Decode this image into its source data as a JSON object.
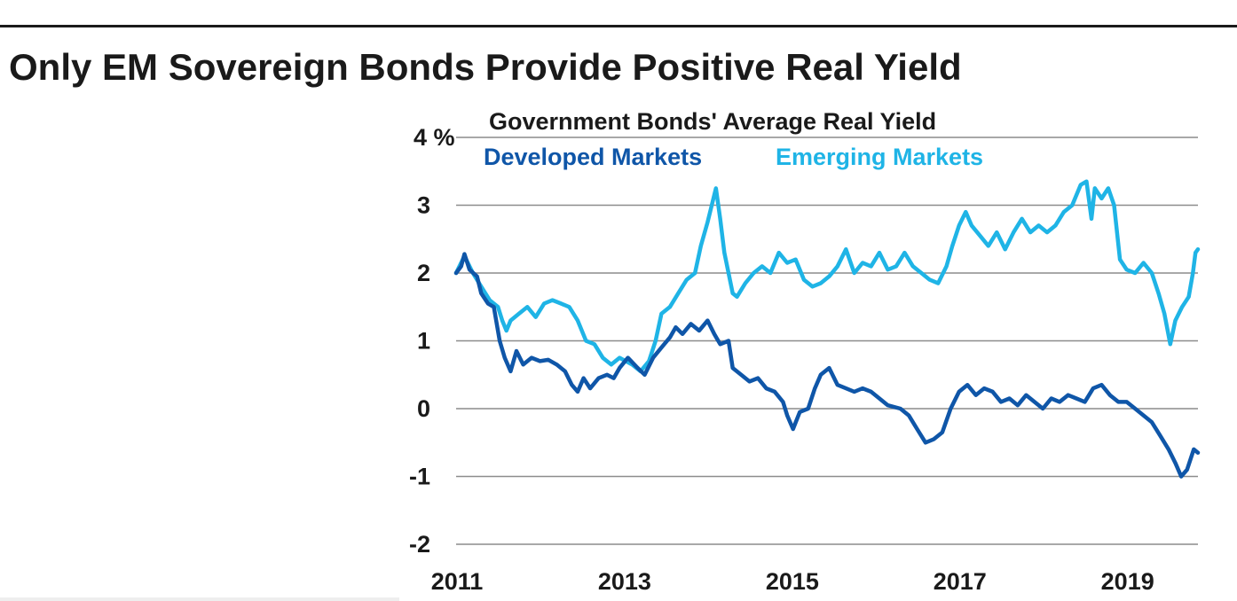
{
  "page": {
    "title": "Only EM Sovereign Bonds Provide Positive Real Yield"
  },
  "colors": {
    "developed": "#0f56a8",
    "emerging": "#1fb4e6",
    "grid": "#8c8c8c",
    "text": "#1a1a1a"
  },
  "chart_data": {
    "type": "line",
    "title": "Government Bonds' Average Real Yield",
    "ylabel": "%",
    "xlim": [
      2011,
      2019.85
    ],
    "ylim": [
      -2,
      4
    ],
    "x_ticks": [
      2011,
      2013,
      2015,
      2017,
      2019
    ],
    "x_tick_labels": [
      "2011",
      "2013",
      "2015",
      "2017",
      "2019"
    ],
    "y_ticks": [
      4,
      3,
      2,
      1,
      0,
      -1,
      -2
    ],
    "y_tick_labels": [
      "4 %",
      "3",
      "2",
      "1",
      "0",
      "-1",
      "-2"
    ],
    "grid": true,
    "legend_position": "top-left",
    "series": [
      {
        "name": "Developed Markets",
        "color": "#0f56a8",
        "points": [
          [
            2011.0,
            2.0
          ],
          [
            2011.06,
            2.1
          ],
          [
            2011.1,
            2.28
          ],
          [
            2011.16,
            2.05
          ],
          [
            2011.25,
            1.95
          ],
          [
            2011.3,
            1.7
          ],
          [
            2011.38,
            1.55
          ],
          [
            2011.45,
            1.5
          ],
          [
            2011.52,
            1.0
          ],
          [
            2011.58,
            0.75
          ],
          [
            2011.65,
            0.55
          ],
          [
            2011.72,
            0.85
          ],
          [
            2011.8,
            0.65
          ],
          [
            2011.9,
            0.75
          ],
          [
            2012.0,
            0.7
          ],
          [
            2012.1,
            0.72
          ],
          [
            2012.2,
            0.65
          ],
          [
            2012.3,
            0.55
          ],
          [
            2012.38,
            0.35
          ],
          [
            2012.45,
            0.25
          ],
          [
            2012.52,
            0.45
          ],
          [
            2012.6,
            0.3
          ],
          [
            2012.7,
            0.45
          ],
          [
            2012.8,
            0.5
          ],
          [
            2012.88,
            0.45
          ],
          [
            2012.95,
            0.6
          ],
          [
            2013.05,
            0.75
          ],
          [
            2013.15,
            0.62
          ],
          [
            2013.25,
            0.5
          ],
          [
            2013.35,
            0.75
          ],
          [
            2013.45,
            0.9
          ],
          [
            2013.55,
            1.05
          ],
          [
            2013.62,
            1.2
          ],
          [
            2013.7,
            1.1
          ],
          [
            2013.8,
            1.25
          ],
          [
            2013.9,
            1.15
          ],
          [
            2014.0,
            1.3
          ],
          [
            2014.08,
            1.1
          ],
          [
            2014.15,
            0.95
          ],
          [
            2014.25,
            1.0
          ],
          [
            2014.3,
            0.6
          ],
          [
            2014.4,
            0.5
          ],
          [
            2014.5,
            0.4
          ],
          [
            2014.6,
            0.45
          ],
          [
            2014.7,
            0.3
          ],
          [
            2014.8,
            0.25
          ],
          [
            2014.9,
            0.1
          ],
          [
            2014.95,
            -0.1
          ],
          [
            2015.02,
            -0.3
          ],
          [
            2015.1,
            -0.05
          ],
          [
            2015.2,
            0.0
          ],
          [
            2015.28,
            0.3
          ],
          [
            2015.35,
            0.5
          ],
          [
            2015.45,
            0.6
          ],
          [
            2015.55,
            0.35
          ],
          [
            2015.65,
            0.3
          ],
          [
            2015.75,
            0.25
          ],
          [
            2015.85,
            0.3
          ],
          [
            2015.95,
            0.25
          ],
          [
            2016.05,
            0.15
          ],
          [
            2016.15,
            0.05
          ],
          [
            2016.3,
            0.0
          ],
          [
            2016.4,
            -0.1
          ],
          [
            2016.5,
            -0.3
          ],
          [
            2016.6,
            -0.5
          ],
          [
            2016.7,
            -0.45
          ],
          [
            2016.8,
            -0.35
          ],
          [
            2016.9,
            0.0
          ],
          [
            2017.0,
            0.25
          ],
          [
            2017.1,
            0.35
          ],
          [
            2017.2,
            0.2
          ],
          [
            2017.3,
            0.3
          ],
          [
            2017.4,
            0.25
          ],
          [
            2017.5,
            0.1
          ],
          [
            2017.6,
            0.15
          ],
          [
            2017.7,
            0.05
          ],
          [
            2017.8,
            0.2
          ],
          [
            2017.9,
            0.1
          ],
          [
            2018.0,
            0.0
          ],
          [
            2018.1,
            0.15
          ],
          [
            2018.2,
            0.1
          ],
          [
            2018.3,
            0.2
          ],
          [
            2018.4,
            0.15
          ],
          [
            2018.5,
            0.1
          ],
          [
            2018.6,
            0.3
          ],
          [
            2018.7,
            0.35
          ],
          [
            2018.8,
            0.2
          ],
          [
            2018.9,
            0.1
          ],
          [
            2019.0,
            0.1
          ],
          [
            2019.1,
            0.0
          ],
          [
            2019.2,
            -0.1
          ],
          [
            2019.3,
            -0.2
          ],
          [
            2019.4,
            -0.4
          ],
          [
            2019.5,
            -0.6
          ],
          [
            2019.58,
            -0.8
          ],
          [
            2019.65,
            -1.0
          ],
          [
            2019.72,
            -0.9
          ],
          [
            2019.76,
            -0.75
          ],
          [
            2019.8,
            -0.6
          ],
          [
            2019.85,
            -0.65
          ]
        ]
      },
      {
        "name": "Emerging Markets",
        "color": "#1fb4e6",
        "points": [
          [
            2011.0,
            2.0
          ],
          [
            2011.1,
            2.25
          ],
          [
            2011.2,
            2.0
          ],
          [
            2011.3,
            1.8
          ],
          [
            2011.4,
            1.6
          ],
          [
            2011.5,
            1.5
          ],
          [
            2011.55,
            1.3
          ],
          [
            2011.6,
            1.15
          ],
          [
            2011.65,
            1.3
          ],
          [
            2011.75,
            1.4
          ],
          [
            2011.85,
            1.5
          ],
          [
            2011.95,
            1.35
          ],
          [
            2012.05,
            1.55
          ],
          [
            2012.15,
            1.6
          ],
          [
            2012.25,
            1.55
          ],
          [
            2012.35,
            1.5
          ],
          [
            2012.45,
            1.3
          ],
          [
            2012.55,
            1.0
          ],
          [
            2012.65,
            0.95
          ],
          [
            2012.75,
            0.75
          ],
          [
            2012.85,
            0.65
          ],
          [
            2012.95,
            0.75
          ],
          [
            2013.1,
            0.65
          ],
          [
            2013.2,
            0.55
          ],
          [
            2013.3,
            0.7
          ],
          [
            2013.38,
            1.0
          ],
          [
            2013.45,
            1.4
          ],
          [
            2013.55,
            1.5
          ],
          [
            2013.65,
            1.7
          ],
          [
            2013.75,
            1.9
          ],
          [
            2013.85,
            2.0
          ],
          [
            2013.92,
            2.4
          ],
          [
            2014.0,
            2.75
          ],
          [
            2014.05,
            3.0
          ],
          [
            2014.1,
            3.25
          ],
          [
            2014.15,
            2.8
          ],
          [
            2014.2,
            2.3
          ],
          [
            2014.25,
            2.0
          ],
          [
            2014.3,
            1.7
          ],
          [
            2014.35,
            1.65
          ],
          [
            2014.45,
            1.85
          ],
          [
            2014.55,
            2.0
          ],
          [
            2014.65,
            2.1
          ],
          [
            2014.75,
            2.0
          ],
          [
            2014.85,
            2.3
          ],
          [
            2014.95,
            2.15
          ],
          [
            2015.05,
            2.2
          ],
          [
            2015.15,
            1.9
          ],
          [
            2015.25,
            1.8
          ],
          [
            2015.35,
            1.85
          ],
          [
            2015.45,
            1.95
          ],
          [
            2015.55,
            2.1
          ],
          [
            2015.65,
            2.35
          ],
          [
            2015.75,
            2.0
          ],
          [
            2015.85,
            2.15
          ],
          [
            2015.95,
            2.1
          ],
          [
            2016.05,
            2.3
          ],
          [
            2016.15,
            2.05
          ],
          [
            2016.25,
            2.1
          ],
          [
            2016.35,
            2.3
          ],
          [
            2016.45,
            2.1
          ],
          [
            2016.55,
            2.0
          ],
          [
            2016.65,
            1.9
          ],
          [
            2016.75,
            1.85
          ],
          [
            2016.85,
            2.1
          ],
          [
            2016.92,
            2.4
          ],
          [
            2017.0,
            2.7
          ],
          [
            2017.08,
            2.9
          ],
          [
            2017.15,
            2.7
          ],
          [
            2017.25,
            2.55
          ],
          [
            2017.35,
            2.4
          ],
          [
            2017.45,
            2.6
          ],
          [
            2017.55,
            2.35
          ],
          [
            2017.65,
            2.6
          ],
          [
            2017.75,
            2.8
          ],
          [
            2017.85,
            2.6
          ],
          [
            2017.95,
            2.7
          ],
          [
            2018.05,
            2.6
          ],
          [
            2018.15,
            2.7
          ],
          [
            2018.25,
            2.9
          ],
          [
            2018.35,
            3.0
          ],
          [
            2018.45,
            3.3
          ],
          [
            2018.52,
            3.35
          ],
          [
            2018.58,
            2.8
          ],
          [
            2018.62,
            3.25
          ],
          [
            2018.7,
            3.1
          ],
          [
            2018.78,
            3.25
          ],
          [
            2018.85,
            3.0
          ],
          [
            2018.92,
            2.2
          ],
          [
            2019.0,
            2.05
          ],
          [
            2019.1,
            2.0
          ],
          [
            2019.2,
            2.15
          ],
          [
            2019.3,
            2.0
          ],
          [
            2019.38,
            1.7
          ],
          [
            2019.45,
            1.4
          ],
          [
            2019.52,
            0.95
          ],
          [
            2019.58,
            1.3
          ],
          [
            2019.66,
            1.5
          ],
          [
            2019.74,
            1.65
          ],
          [
            2019.79,
            2.0
          ],
          [
            2019.82,
            2.3
          ],
          [
            2019.85,
            2.35
          ]
        ]
      }
    ]
  }
}
